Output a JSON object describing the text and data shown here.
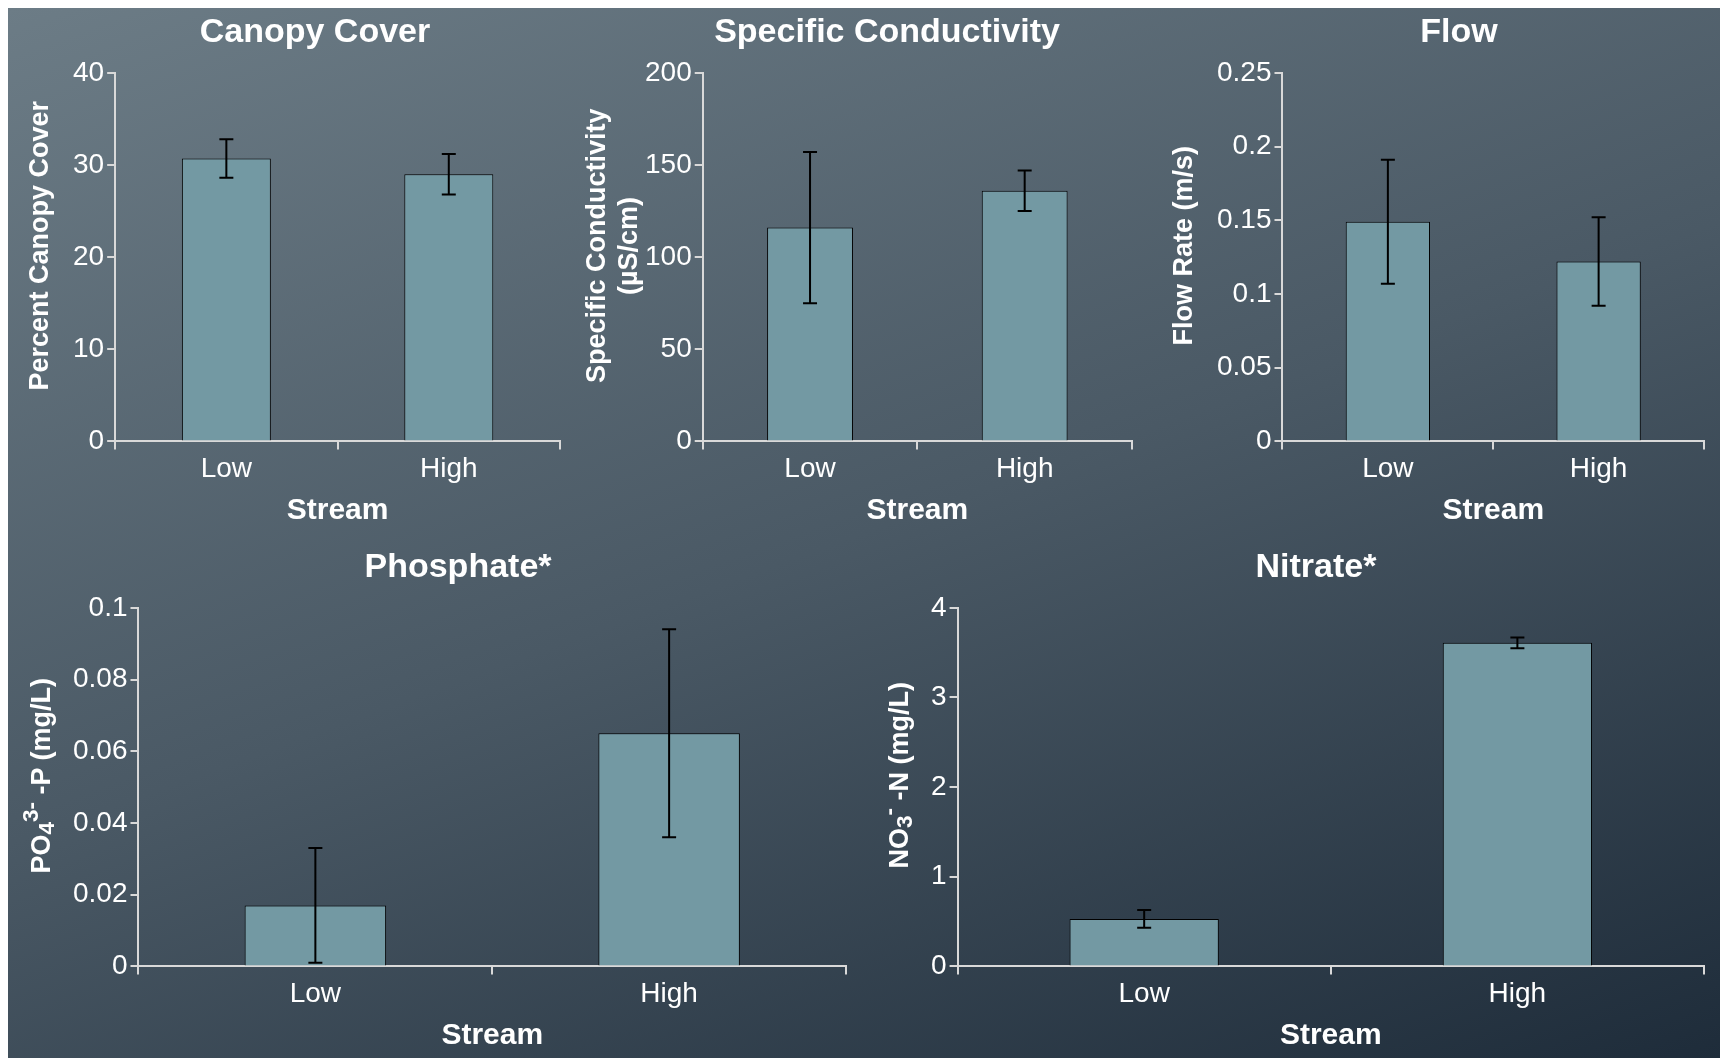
{
  "chart_data": [
    {
      "type": "bar",
      "title": "Canopy Cover",
      "xlabel": "Stream",
      "ylabel": "Percent Canopy Cover",
      "categories": [
        "Low",
        "High"
      ],
      "values": [
        30.7,
        29.0
      ],
      "errors": [
        2.1,
        2.2
      ],
      "color": "#7399a3",
      "ylim": [
        0,
        40
      ],
      "yticks": [
        0,
        10,
        20,
        30,
        40
      ]
    },
    {
      "type": "bar",
      "title": "Specific Conductivity",
      "xlabel": "Stream",
      "ylabel": "Specific Conductivity (µS/cm)",
      "categories": [
        "Low",
        "High"
      ],
      "values": [
        116,
        136
      ],
      "errors": [
        41,
        11
      ],
      "color": "#7399a3",
      "ylim": [
        0,
        200
      ],
      "yticks": [
        0,
        50,
        100,
        150,
        200
      ]
    },
    {
      "type": "bar",
      "title": "Flow",
      "xlabel": "Stream",
      "ylabel": "Flow Rate (m/s)",
      "categories": [
        "Low",
        "High"
      ],
      "values": [
        0.149,
        0.122
      ],
      "errors": [
        0.042,
        0.03
      ],
      "color": "#7399a3",
      "ylim": [
        0,
        0.25
      ],
      "yticks": [
        0,
        0.05,
        0.1,
        0.15,
        0.2,
        0.25
      ]
    },
    {
      "type": "bar",
      "title": "Phosphate*",
      "xlabel": "Stream",
      "ylabel": "PO$_{4}$$^{3-}$ -P (mg/L)",
      "categories": [
        "Low",
        "High"
      ],
      "values": [
        0.017,
        0.065
      ],
      "errors": [
        0.016,
        0.029
      ],
      "color": "#7399a3",
      "ylim": [
        0,
        0.1
      ],
      "yticks": [
        0,
        0.02,
        0.04,
        0.06,
        0.08,
        0.1
      ]
    },
    {
      "type": "bar",
      "title": "Nitrate*",
      "xlabel": "Stream",
      "ylabel": "NO$_{3}$$^{-}$ -N (mg/L)",
      "categories": [
        "Low",
        "High"
      ],
      "values": [
        0.53,
        3.61
      ],
      "errors": [
        0.1,
        0.06
      ],
      "color": "#7399a3",
      "ylim": [
        0,
        4
      ],
      "yticks": [
        0,
        1,
        2,
        3,
        4
      ]
    }
  ]
}
